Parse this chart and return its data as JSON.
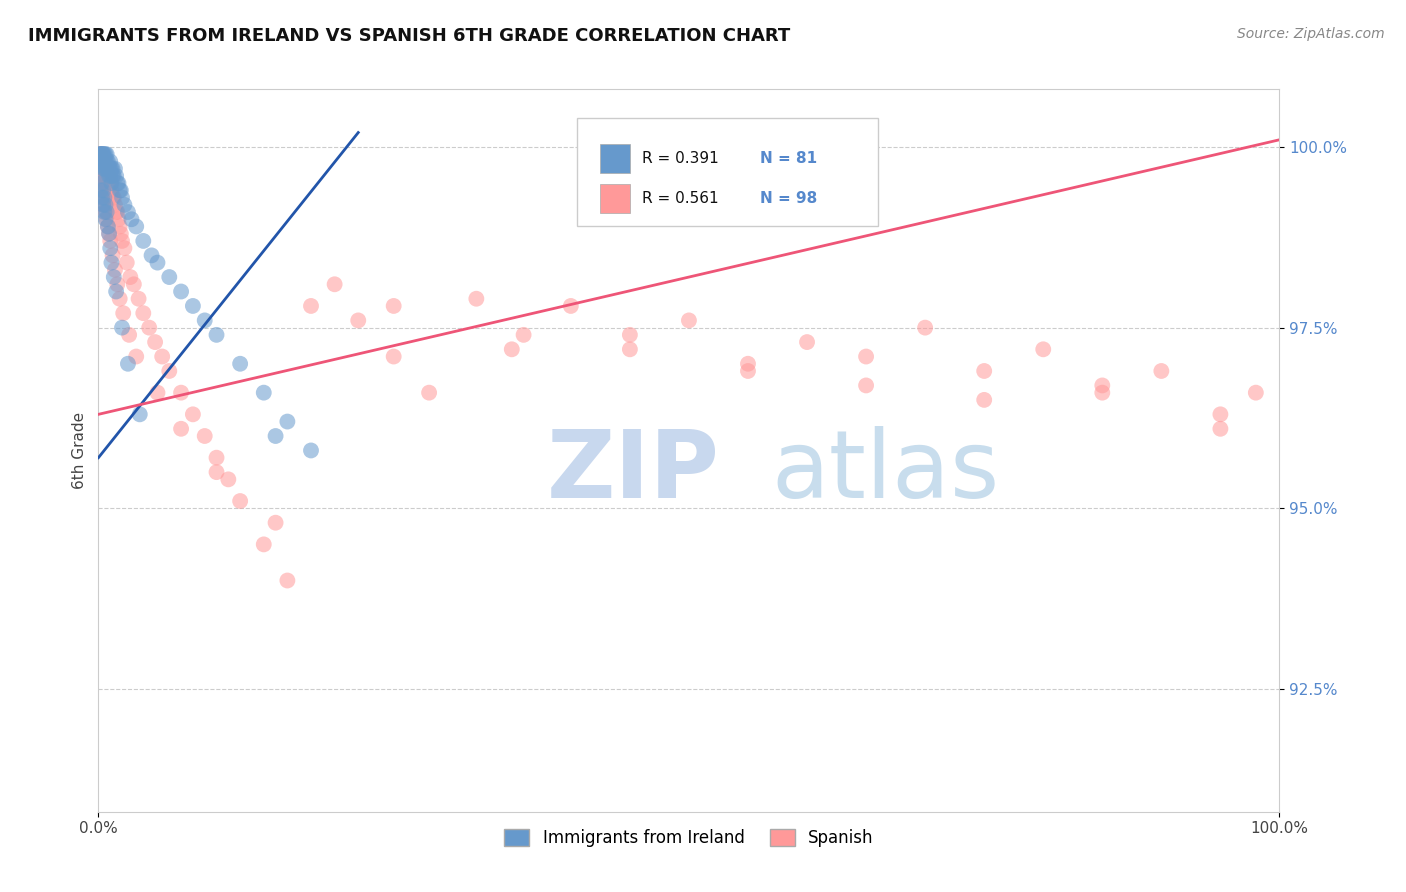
{
  "title": "IMMIGRANTS FROM IRELAND VS SPANISH 6TH GRADE CORRELATION CHART",
  "source_text": "Source: ZipAtlas.com",
  "ylabel": "6th Grade",
  "xlim": [
    0.0,
    1.0
  ],
  "ylim": [
    0.908,
    1.008
  ],
  "y_ticks": [
    0.925,
    0.95,
    0.975,
    1.0
  ],
  "y_tick_labels": [
    "92.5%",
    "95.0%",
    "97.5%",
    "100.0%"
  ],
  "legend_items": [
    "Immigrants from Ireland",
    "Spanish"
  ],
  "blue_color": "#6699CC",
  "pink_color": "#FF9999",
  "blue_line_color": "#2255AA",
  "pink_line_color": "#EE5577",
  "R_blue": 0.391,
  "N_blue": 81,
  "R_pink": 0.561,
  "N_pink": 98,
  "blue_x": [
    0.001,
    0.001,
    0.001,
    0.002,
    0.002,
    0.002,
    0.002,
    0.003,
    0.003,
    0.003,
    0.003,
    0.004,
    0.004,
    0.004,
    0.004,
    0.005,
    0.005,
    0.005,
    0.005,
    0.006,
    0.006,
    0.006,
    0.007,
    0.007,
    0.007,
    0.008,
    0.008,
    0.009,
    0.009,
    0.01,
    0.01,
    0.01,
    0.011,
    0.011,
    0.012,
    0.012,
    0.013,
    0.014,
    0.015,
    0.016,
    0.017,
    0.018,
    0.019,
    0.02,
    0.022,
    0.025,
    0.028,
    0.032,
    0.038,
    0.045,
    0.05,
    0.06,
    0.07,
    0.08,
    0.09,
    0.1,
    0.12,
    0.14,
    0.16,
    0.18,
    0.002,
    0.002,
    0.003,
    0.003,
    0.004,
    0.004,
    0.005,
    0.005,
    0.006,
    0.006,
    0.007,
    0.008,
    0.009,
    0.01,
    0.011,
    0.013,
    0.015,
    0.02,
    0.025,
    0.035,
    0.15
  ],
  "blue_y": [
    0.999,
    0.998,
    0.999,
    0.999,
    0.998,
    0.999,
    0.998,
    0.999,
    0.998,
    0.999,
    0.998,
    0.999,
    0.998,
    0.997,
    0.999,
    0.998,
    0.999,
    0.997,
    0.998,
    0.998,
    0.997,
    0.999,
    0.998,
    0.997,
    0.999,
    0.998,
    0.997,
    0.997,
    0.996,
    0.997,
    0.998,
    0.996,
    0.997,
    0.995,
    0.997,
    0.996,
    0.996,
    0.997,
    0.996,
    0.995,
    0.995,
    0.994,
    0.994,
    0.993,
    0.992,
    0.991,
    0.99,
    0.989,
    0.987,
    0.985,
    0.984,
    0.982,
    0.98,
    0.978,
    0.976,
    0.974,
    0.97,
    0.966,
    0.962,
    0.958,
    0.996,
    0.994,
    0.995,
    0.993,
    0.994,
    0.992,
    0.993,
    0.991,
    0.992,
    0.99,
    0.991,
    0.989,
    0.988,
    0.986,
    0.984,
    0.982,
    0.98,
    0.975,
    0.97,
    0.963,
    0.96
  ],
  "pink_x": [
    0.001,
    0.001,
    0.002,
    0.002,
    0.002,
    0.003,
    0.003,
    0.004,
    0.004,
    0.005,
    0.005,
    0.005,
    0.006,
    0.006,
    0.007,
    0.007,
    0.008,
    0.008,
    0.009,
    0.009,
    0.01,
    0.01,
    0.011,
    0.012,
    0.013,
    0.014,
    0.015,
    0.016,
    0.017,
    0.018,
    0.019,
    0.02,
    0.022,
    0.024,
    0.027,
    0.03,
    0.034,
    0.038,
    0.043,
    0.048,
    0.054,
    0.06,
    0.07,
    0.08,
    0.09,
    0.1,
    0.11,
    0.12,
    0.14,
    0.16,
    0.18,
    0.2,
    0.22,
    0.25,
    0.28,
    0.32,
    0.36,
    0.4,
    0.45,
    0.5,
    0.55,
    0.6,
    0.65,
    0.7,
    0.75,
    0.8,
    0.85,
    0.9,
    0.95,
    0.98,
    0.003,
    0.003,
    0.004,
    0.005,
    0.006,
    0.007,
    0.008,
    0.009,
    0.01,
    0.012,
    0.014,
    0.016,
    0.018,
    0.021,
    0.026,
    0.032,
    0.05,
    0.07,
    0.1,
    0.15,
    0.25,
    0.35,
    0.45,
    0.55,
    0.65,
    0.75,
    0.85,
    0.95
  ],
  "pink_y": [
    0.999,
    0.998,
    0.999,
    0.998,
    0.997,
    0.998,
    0.997,
    0.998,
    0.996,
    0.998,
    0.997,
    0.995,
    0.997,
    0.996,
    0.997,
    0.995,
    0.996,
    0.994,
    0.996,
    0.994,
    0.995,
    0.993,
    0.994,
    0.993,
    0.993,
    0.992,
    0.991,
    0.991,
    0.99,
    0.989,
    0.988,
    0.987,
    0.986,
    0.984,
    0.982,
    0.981,
    0.979,
    0.977,
    0.975,
    0.973,
    0.971,
    0.969,
    0.966,
    0.963,
    0.96,
    0.957,
    0.954,
    0.951,
    0.945,
    0.94,
    0.978,
    0.981,
    0.976,
    0.971,
    0.966,
    0.979,
    0.974,
    0.978,
    0.972,
    0.976,
    0.97,
    0.973,
    0.967,
    0.975,
    0.969,
    0.972,
    0.966,
    0.969,
    0.963,
    0.966,
    0.996,
    0.994,
    0.993,
    0.992,
    0.991,
    0.99,
    0.989,
    0.988,
    0.987,
    0.985,
    0.983,
    0.981,
    0.979,
    0.977,
    0.974,
    0.971,
    0.966,
    0.961,
    0.955,
    0.948,
    0.978,
    0.972,
    0.974,
    0.969,
    0.971,
    0.965,
    0.967,
    0.961
  ]
}
